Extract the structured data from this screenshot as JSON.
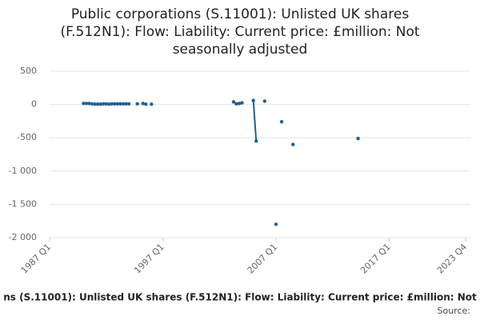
{
  "chart_data": {
    "type": "scatter",
    "title": [
      "Public corporations (S.11001): Unlisted UK shares",
      "(F.512N1): Flow: Liability: Current price: £million: Not",
      "seasonally adjusted"
    ],
    "subtitle": "ns (S.11001): Unlisted UK shares (F.512N1): Flow: Liability: Current price: £million: Not",
    "source": "Source:",
    "color": "#206095",
    "grid": true,
    "xlim": [
      "1987 Q1",
      "2023 Q4"
    ],
    "xticks": [
      "1987 Q1",
      "1997 Q1",
      "2007 Q1",
      "2017 Q1",
      "2023 Q4"
    ],
    "ylim": [
      -2000,
      500
    ],
    "yticks": [
      500,
      0,
      {
        "value": -500,
        "label": "-500"
      },
      {
        "value": -1000,
        "label": "-1 000"
      },
      {
        "value": -1500,
        "label": "-1 500"
      },
      {
        "value": -2000,
        "label": "-2 000"
      }
    ],
    "x": [
      "1990 Q1",
      "1990 Q2",
      "1990 Q3",
      "1990 Q4",
      "1991 Q1",
      "1991 Q2",
      "1991 Q3",
      "1991 Q4",
      "1992 Q1",
      "1992 Q2",
      "1992 Q3",
      "1992 Q4",
      "1993 Q1",
      "1993 Q2",
      "1993 Q3",
      "1993 Q4",
      "1994 Q1",
      "1994 Q4",
      "1995 Q2",
      "1995 Q3",
      "1996 Q1",
      "2003 Q2",
      "2003 Q3",
      "2003 Q4",
      "2004 Q1",
      "2005 Q1",
      "2005 Q2",
      "2006 Q1",
      "2007 Q1",
      "2007 Q3",
      "2008 Q3",
      "2014 Q2"
    ],
    "values": [
      15,
      15,
      15,
      10,
      5,
      5,
      5,
      10,
      10,
      5,
      10,
      10,
      10,
      10,
      10,
      10,
      10,
      10,
      15,
      5,
      5,
      40,
      10,
      15,
      25,
      60,
      -550,
      50,
      -1800,
      -260,
      -600,
      -510
    ]
  }
}
